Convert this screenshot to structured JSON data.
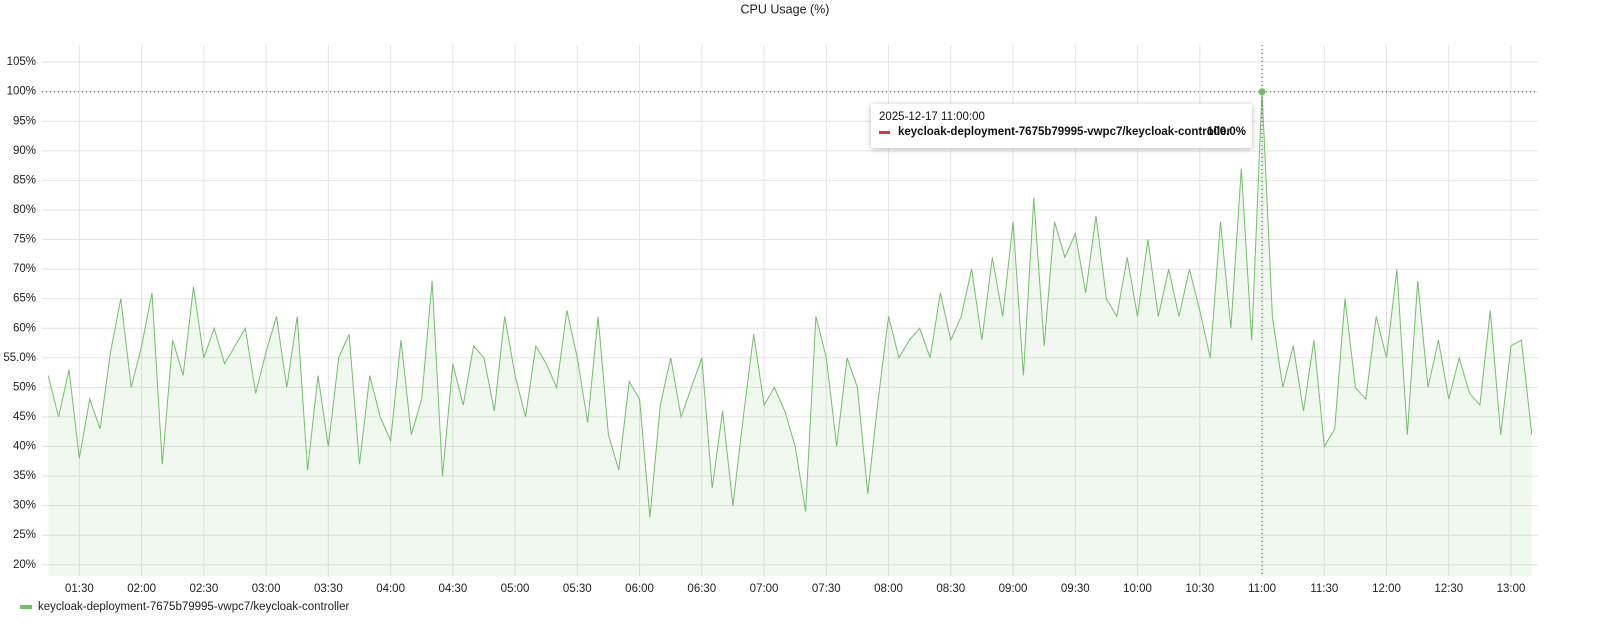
{
  "chart_data": {
    "type": "line",
    "title": "CPU Usage (%)",
    "x": [
      "01:15",
      "01:20",
      "01:25",
      "01:30",
      "01:35",
      "01:40",
      "01:45",
      "01:50",
      "01:55",
      "02:00",
      "02:05",
      "02:10",
      "02:15",
      "02:20",
      "02:25",
      "02:30",
      "02:35",
      "02:40",
      "02:45",
      "02:50",
      "02:55",
      "03:00",
      "03:05",
      "03:10",
      "03:15",
      "03:20",
      "03:25",
      "03:30",
      "03:35",
      "03:40",
      "03:45",
      "03:50",
      "03:55",
      "04:00",
      "04:05",
      "04:10",
      "04:15",
      "04:20",
      "04:25",
      "04:30",
      "04:35",
      "04:40",
      "04:45",
      "04:50",
      "04:55",
      "05:00",
      "05:05",
      "05:10",
      "05:15",
      "05:20",
      "05:25",
      "05:30",
      "05:35",
      "05:40",
      "05:45",
      "05:50",
      "05:55",
      "06:00",
      "06:05",
      "06:10",
      "06:15",
      "06:20",
      "06:25",
      "06:30",
      "06:35",
      "06:40",
      "06:45",
      "06:50",
      "06:55",
      "07:00",
      "07:05",
      "07:10",
      "07:15",
      "07:20",
      "07:25",
      "07:30",
      "07:35",
      "07:40",
      "07:45",
      "07:50",
      "07:55",
      "08:00",
      "08:05",
      "08:10",
      "08:15",
      "08:20",
      "08:25",
      "08:30",
      "08:35",
      "08:40",
      "08:45",
      "08:50",
      "08:55",
      "09:00",
      "09:05",
      "09:10",
      "09:15",
      "09:20",
      "09:25",
      "09:30",
      "09:35",
      "09:40",
      "09:45",
      "09:50",
      "09:55",
      "10:00",
      "10:05",
      "10:10",
      "10:15",
      "10:20",
      "10:25",
      "10:30",
      "10:35",
      "10:40",
      "10:45",
      "10:50",
      "10:55",
      "11:00",
      "11:05",
      "11:10",
      "11:15",
      "11:20",
      "11:25",
      "11:30",
      "11:35",
      "11:40",
      "11:45",
      "11:50",
      "11:55",
      "12:00",
      "12:05",
      "12:10",
      "12:15",
      "12:20",
      "12:25",
      "12:30",
      "12:35",
      "12:40",
      "12:45",
      "12:50",
      "12:55",
      "13:00",
      "13:05",
      "13:10"
    ],
    "series": [
      {
        "name": "keycloak-deployment-7675b79995-vwpc7/keycloak-controller",
        "color": "#73bf69",
        "values": [
          52,
          45,
          53,
          38,
          48,
          43,
          56,
          65,
          50,
          57,
          66,
          37,
          58,
          52,
          67,
          55,
          60,
          54,
          57,
          60,
          49,
          56,
          62,
          50,
          62,
          36,
          52,
          40,
          55,
          59,
          37,
          52,
          45,
          41,
          58,
          42,
          48,
          68,
          35,
          54,
          47,
          57,
          55,
          46,
          62,
          52,
          45,
          57,
          54,
          50,
          63,
          55,
          44,
          62,
          42,
          36,
          51,
          48,
          28,
          47,
          55,
          45,
          50,
          55,
          33,
          46,
          30,
          45,
          59,
          47,
          50,
          46,
          40,
          29,
          62,
          55,
          40,
          55,
          50,
          32,
          48,
          62,
          55,
          58,
          60,
          55,
          66,
          58,
          62,
          70,
          58,
          72,
          62,
          78,
          52,
          82,
          57,
          78,
          72,
          76,
          66,
          79,
          65,
          62,
          72,
          62,
          75,
          62,
          70,
          62,
          70,
          63,
          55,
          78,
          60,
          87,
          58,
          100,
          62,
          50,
          57,
          46,
          58,
          40,
          43,
          65,
          50,
          48,
          62,
          55,
          70,
          42,
          68,
          50,
          58,
          48,
          55,
          49,
          47,
          63,
          42,
          57,
          58,
          42
        ]
      }
    ],
    "xlim": [
      "01:12",
      "13:13"
    ],
    "xticks": [
      "01:30",
      "02:00",
      "02:30",
      "03:00",
      "03:30",
      "04:00",
      "04:30",
      "05:00",
      "05:30",
      "06:00",
      "06:30",
      "07:00",
      "07:30",
      "08:00",
      "08:30",
      "09:00",
      "09:30",
      "10:00",
      "10:30",
      "11:00",
      "11:30",
      "12:00",
      "12:30",
      "13:00"
    ],
    "ylim": [
      18.1,
      107.9
    ],
    "yticks": [
      {
        "value": 20,
        "label": "20%"
      },
      {
        "value": 25,
        "label": "25%"
      },
      {
        "value": 30,
        "label": "30%"
      },
      {
        "value": 35,
        "label": "35%"
      },
      {
        "value": 40,
        "label": "40%"
      },
      {
        "value": 45,
        "label": "45%"
      },
      {
        "value": 50,
        "label": "50%"
      },
      {
        "value": 55,
        "label": "55.0%"
      },
      {
        "value": 60,
        "label": "60%"
      },
      {
        "value": 65,
        "label": "65%"
      },
      {
        "value": 70,
        "label": "70%"
      },
      {
        "value": 75,
        "label": "75%"
      },
      {
        "value": 80,
        "label": "80%"
      },
      {
        "value": 85,
        "label": "85%"
      },
      {
        "value": 90,
        "label": "90%"
      },
      {
        "value": 95,
        "label": "95%"
      },
      {
        "value": 100,
        "label": "100%"
      },
      {
        "value": 105,
        "label": "105%"
      }
    ],
    "grid": true,
    "tooltip": {
      "title": "2025-12-17 11:00:00",
      "series": "keycloak-deployment-7675b79995-vwpc7/keycloak-controller",
      "value": 100,
      "value_label": "100.0%"
    }
  }
}
